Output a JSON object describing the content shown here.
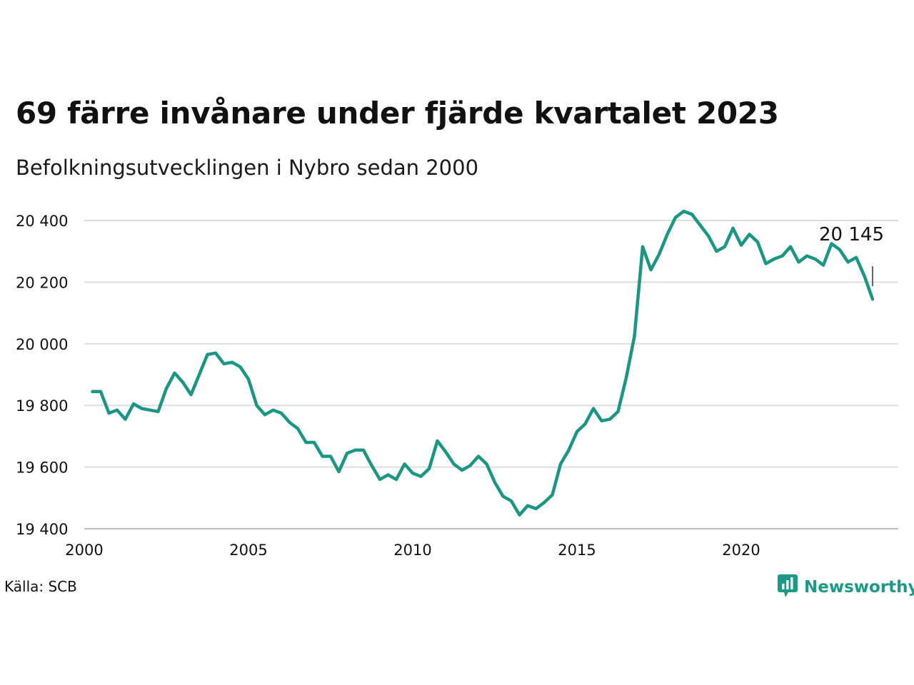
{
  "title": "69 färre invånare under fjärde kvartalet 2023",
  "subtitle": "Befolkningsutvecklingen i Nybro sedan 2000",
  "source": "Källa: SCB",
  "brand": {
    "name": "Newsworthy",
    "icon": "newsworthy-logo-icon",
    "color": "#1c9a86"
  },
  "colors": {
    "line": "#1a9682",
    "grid": "#dddddd"
  },
  "chart_data": {
    "type": "line",
    "title": "69 färre invånare under fjärde kvartalet 2023",
    "subtitle": "Befolkningsutvecklingen i Nybro sedan 2000",
    "xlabel": "",
    "ylabel": "",
    "xlim": [
      2000,
      2024
    ],
    "ylim": [
      19400,
      20460
    ],
    "grid": true,
    "y_ticks": [
      19400,
      19600,
      19800,
      20000,
      20200,
      20400
    ],
    "y_tick_labels": [
      "19 400",
      "19 600",
      "19 800",
      "20 000",
      "20 200",
      "20 400"
    ],
    "x_ticks": [
      2000,
      2005,
      2010,
      2015,
      2020
    ],
    "x_tick_labels": [
      "2000",
      "2005",
      "2010",
      "2015",
      "2020"
    ],
    "annotation": {
      "label": "20 145",
      "value": 20145
    },
    "series": [
      {
        "x_start": 2000.25,
        "x_step": 0.25,
        "values": [
          19845,
          19845,
          19775,
          19785,
          19755,
          19805,
          19790,
          19785,
          19780,
          19855,
          19905,
          19875,
          19835,
          19900,
          19965,
          19970,
          19935,
          19940,
          19925,
          19885,
          19800,
          19770,
          19785,
          19775,
          19745,
          19725,
          19680,
          19680,
          19635,
          19635,
          19585,
          19645,
          19655,
          19655,
          19605,
          19560,
          19575,
          19560,
          19610,
          19580,
          19570,
          19595,
          19685,
          19650,
          19610,
          19590,
          19605,
          19635,
          19610,
          19550,
          19505,
          19490,
          19445,
          19475,
          19465,
          19485,
          19510,
          19610,
          19655,
          19715,
          19740,
          19790,
          19750,
          19755,
          19780,
          19890,
          20025,
          20315,
          20240,
          20290,
          20355,
          20410,
          20430,
          20420,
          20385,
          20350,
          20300,
          20315,
          20375,
          20320,
          20355,
          20330,
          20260,
          20275,
          20285,
          20315,
          20265,
          20285,
          20275,
          20255,
          20325,
          20305,
          20265,
          20280,
          20220,
          20145
        ]
      }
    ]
  }
}
